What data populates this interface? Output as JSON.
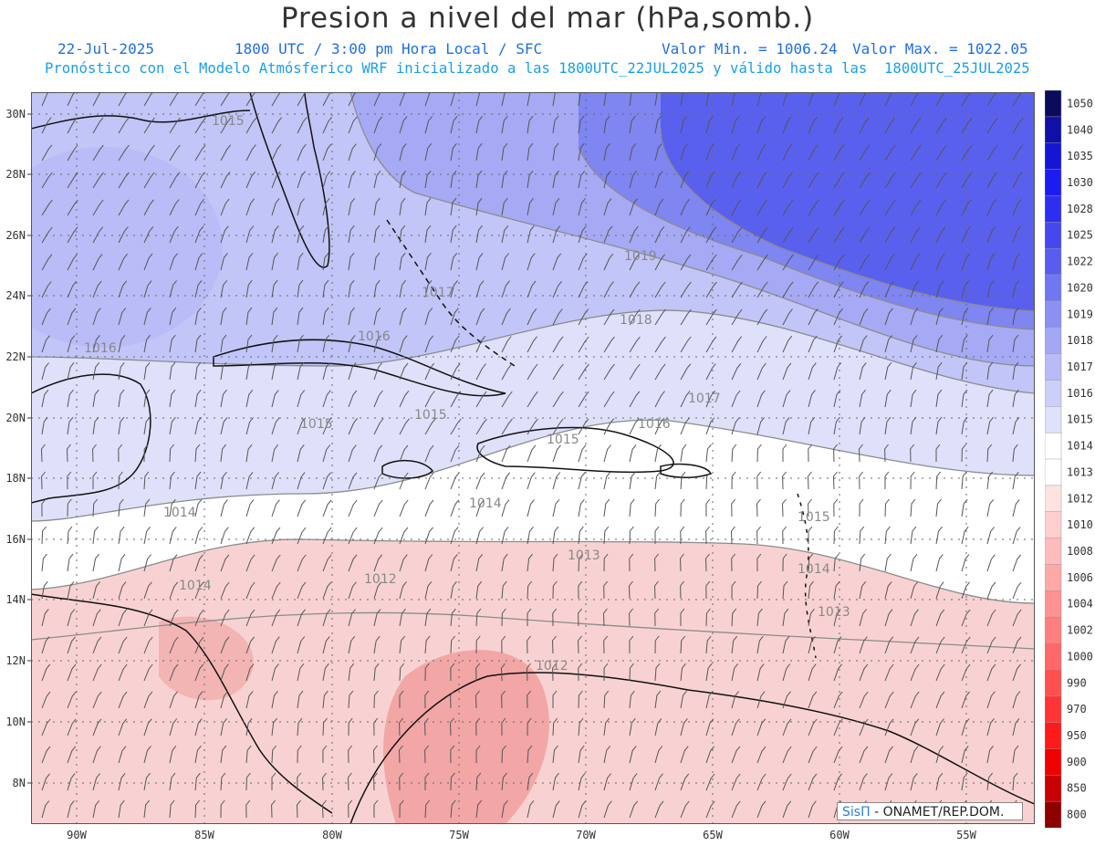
{
  "header": {
    "title": "Presion a nivel del mar (hPa,somb.)",
    "date": "22-Jul-2025",
    "time_label": "1800 UTC / 3:00 pm Hora Local / SFC",
    "min_label": "Valor Min. = 1006.24",
    "max_label": "Valor Max. = 1022.05",
    "forecast_line": "Pronóstico con el Modelo Atmósferico WRF inicializado a las 1800UTC_22JUL2025 y válido hasta las  1800UTC_25JUL2025"
  },
  "map": {
    "lat_labels": [
      "30N",
      "28N",
      "26N",
      "24N",
      "22N",
      "20N",
      "18N",
      "16N",
      "14N",
      "12N",
      "10N",
      "8N"
    ],
    "lon_labels": [
      "90W",
      "85W",
      "80W",
      "75W",
      "70W",
      "65W",
      "60W",
      "55W"
    ],
    "contour_labels": [
      "1015",
      "1019",
      "1017",
      "1018",
      "1016",
      "1016",
      "1017",
      "1015",
      "1015",
      "1016",
      "1015",
      "1014",
      "1014",
      "1015",
      "1013",
      "1012",
      "1014",
      "1014",
      "1013",
      "1012"
    ],
    "colors": {
      "high": "#4e55ef",
      "mid": "#b6baf6",
      "neutral": "#ffffff",
      "low": "#f6bcbc"
    }
  },
  "legend": {
    "values": [
      "1050",
      "1040",
      "1035",
      "1030",
      "1028",
      "1025",
      "1022",
      "1020",
      "1019",
      "1018",
      "1017",
      "1016",
      "1015",
      "1014",
      "1013",
      "1012",
      "1010",
      "1008",
      "1006",
      "1004",
      "1002",
      "1000",
      "990",
      "970",
      "950",
      "900",
      "850",
      "800"
    ],
    "colors": [
      "#0b0b5e",
      "#1010a8",
      "#1515d4",
      "#1c1cf0",
      "#2e2ef2",
      "#4747f0",
      "#5a5cef",
      "#7177f0",
      "#8b90f2",
      "#a3a7f4",
      "#b8bbf6",
      "#ccd0f8",
      "#e0e2fb",
      "#ffffff",
      "#ffffff",
      "#ffe3e3",
      "#ffcfcf",
      "#ffbcbc",
      "#ffa8a8",
      "#ff9393",
      "#ff7e7e",
      "#ff6868",
      "#ff5050",
      "#ff3535",
      "#ff1a1a",
      "#f00000",
      "#c80000",
      "#8c0000"
    ]
  },
  "credit": {
    "brand": "SisΠ",
    "text": "- ONAMET/REP.DOM."
  }
}
